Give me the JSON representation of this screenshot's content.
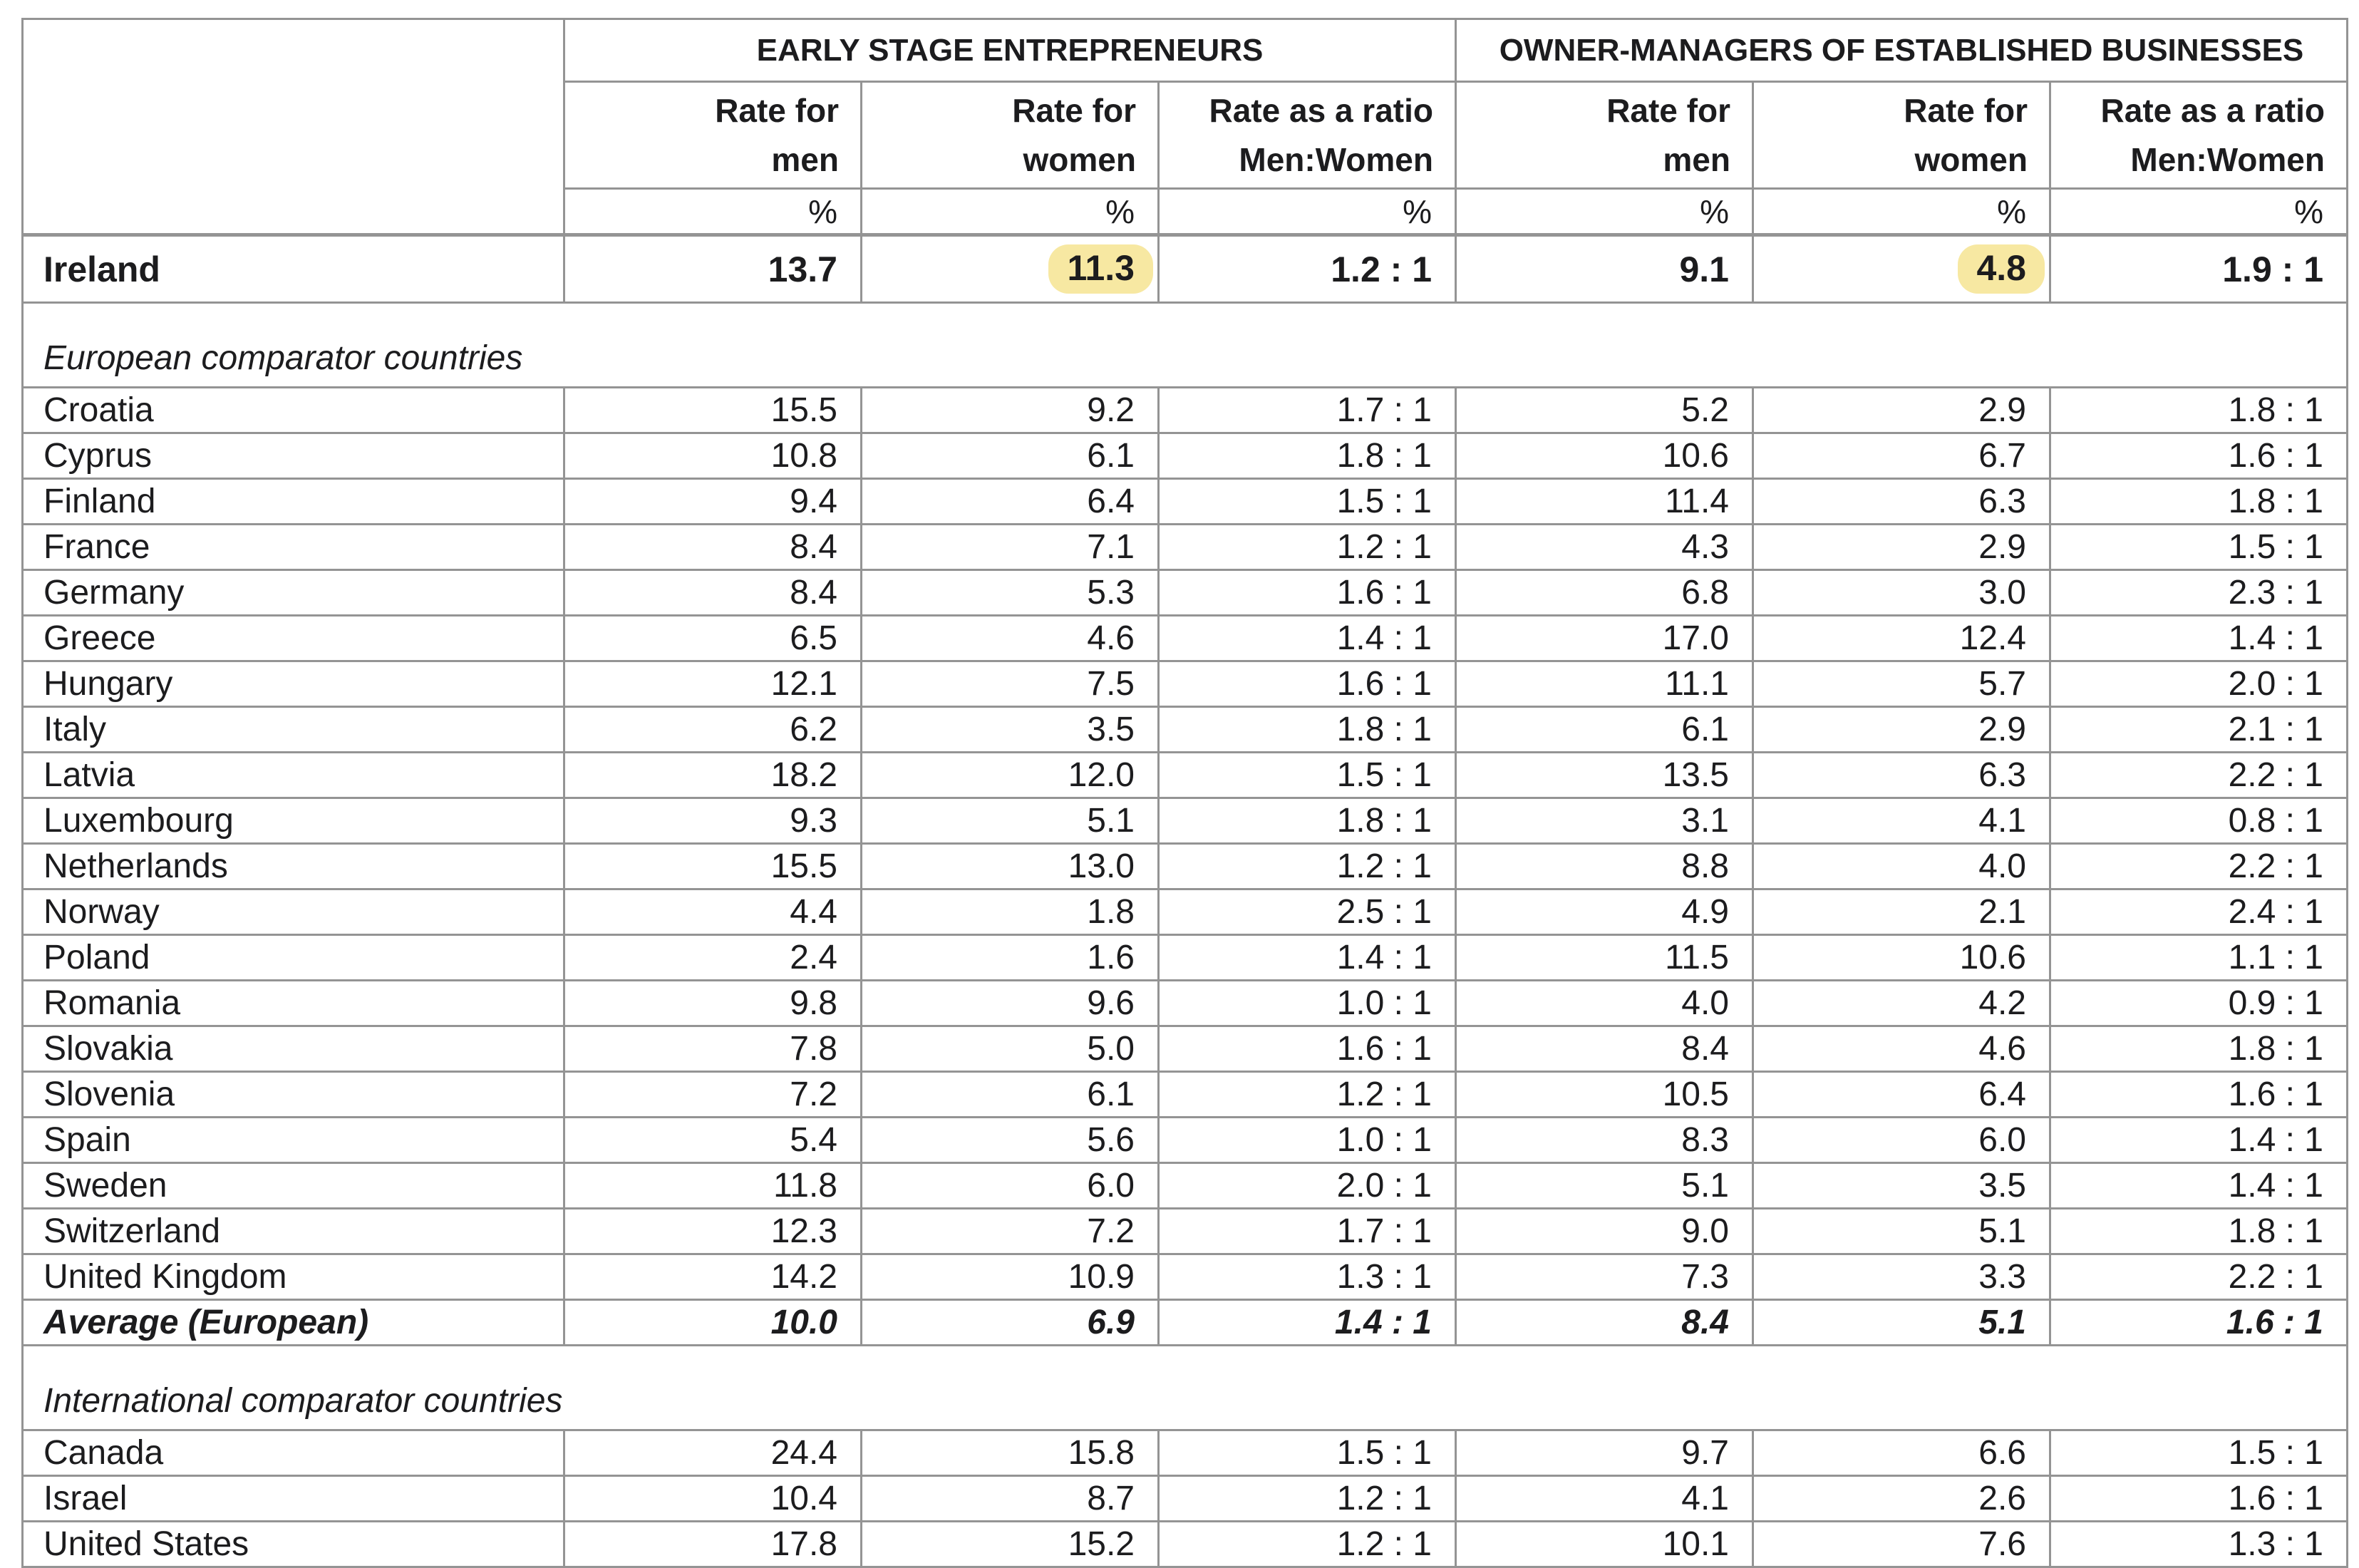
{
  "table": {
    "group_headers": [
      {
        "label": "EARLY STAGE ENTREPRENEURS"
      },
      {
        "label": "OWNER-MANAGERS OF ESTABLISHED BUSINESSES"
      }
    ],
    "col_headers": [
      {
        "line1": "Rate for",
        "line2": "men"
      },
      {
        "line1": "Rate for",
        "line2": "women"
      },
      {
        "line1": "Rate as a ratio",
        "line2": "Men:Women"
      },
      {
        "line1": "Rate for",
        "line2": "men"
      },
      {
        "line1": "Rate for",
        "line2": "women"
      },
      {
        "line1": "Rate as a ratio",
        "line2": "Men:Women"
      }
    ],
    "unit_row": [
      "%",
      "%",
      "%",
      "%",
      "%",
      "%"
    ],
    "ireland": {
      "name": "Ireland",
      "values": [
        "13.7",
        "11.3",
        "1.2 : 1",
        "9.1",
        "4.8",
        "1.9 : 1"
      ],
      "highlighted_value_indexes": [
        1,
        4
      ]
    },
    "sections": [
      {
        "title": "European comparator countries",
        "rows": [
          {
            "name": "Croatia",
            "values": [
              "15.5",
              "9.2",
              "1.7 : 1",
              "5.2",
              "2.9",
              "1.8 : 1"
            ]
          },
          {
            "name": "Cyprus",
            "values": [
              "10.8",
              "6.1",
              "1.8 : 1",
              "10.6",
              "6.7",
              "1.6 : 1"
            ]
          },
          {
            "name": "Finland",
            "values": [
              "9.4",
              "6.4",
              "1.5 : 1",
              "11.4",
              "6.3",
              "1.8 : 1"
            ]
          },
          {
            "name": "France",
            "values": [
              "8.4",
              "7.1",
              "1.2 : 1",
              "4.3",
              "2.9",
              "1.5 : 1"
            ]
          },
          {
            "name": "Germany",
            "values": [
              "8.4",
              "5.3",
              "1.6 : 1",
              "6.8",
              "3.0",
              "2.3 : 1"
            ]
          },
          {
            "name": "Greece",
            "values": [
              "6.5",
              "4.6",
              "1.4 : 1",
              "17.0",
              "12.4",
              "1.4 : 1"
            ]
          },
          {
            "name": "Hungary",
            "values": [
              "12.1",
              "7.5",
              "1.6 : 1",
              "11.1",
              "5.7",
              "2.0 : 1"
            ]
          },
          {
            "name": "Italy",
            "values": [
              "6.2",
              "3.5",
              "1.8 : 1",
              "6.1",
              "2.9",
              "2.1 : 1"
            ]
          },
          {
            "name": "Latvia",
            "values": [
              "18.2",
              "12.0",
              "1.5 : 1",
              "13.5",
              "6.3",
              "2.2 : 1"
            ]
          },
          {
            "name": "Luxembourg",
            "values": [
              "9.3",
              "5.1",
              "1.8 : 1",
              "3.1",
              "4.1",
              "0.8 : 1"
            ]
          },
          {
            "name": "Netherlands",
            "values": [
              "15.5",
              "13.0",
              "1.2 : 1",
              "8.8",
              "4.0",
              "2.2 : 1"
            ]
          },
          {
            "name": "Norway",
            "values": [
              "4.4",
              "1.8",
              "2.5 : 1",
              "4.9",
              "2.1",
              "2.4 : 1"
            ]
          },
          {
            "name": "Poland",
            "values": [
              "2.4",
              "1.6",
              "1.4 : 1",
              "11.5",
              "10.6",
              "1.1 : 1"
            ]
          },
          {
            "name": "Romania",
            "values": [
              "9.8",
              "9.6",
              "1.0 : 1",
              "4.0",
              "4.2",
              "0.9 : 1"
            ]
          },
          {
            "name": "Slovakia",
            "values": [
              "7.8",
              "5.0",
              "1.6 : 1",
              "8.4",
              "4.6",
              "1.8 : 1"
            ]
          },
          {
            "name": "Slovenia",
            "values": [
              "7.2",
              "6.1",
              "1.2 : 1",
              "10.5",
              "6.4",
              "1.6 : 1"
            ]
          },
          {
            "name": "Spain",
            "values": [
              "5.4",
              "5.6",
              "1.0 : 1",
              "8.3",
              "6.0",
              "1.4 : 1"
            ]
          },
          {
            "name": "Sweden",
            "values": [
              "11.8",
              "6.0",
              "2.0 : 1",
              "5.1",
              "3.5",
              "1.4 : 1"
            ]
          },
          {
            "name": "Switzerland",
            "values": [
              "12.3",
              "7.2",
              "1.7 : 1",
              "9.0",
              "5.1",
              "1.8 : 1"
            ]
          },
          {
            "name": "United Kingdom",
            "values": [
              "14.2",
              "10.9",
              "1.3 : 1",
              "7.3",
              "3.3",
              "2.2 : 1"
            ]
          },
          {
            "name": "Average (European)",
            "values": [
              "10.0",
              "6.9",
              "1.4 : 1",
              "8.4",
              "5.1",
              "1.6 : 1"
            ],
            "emphasis": true
          }
        ]
      },
      {
        "title": "International comparator countries",
        "rows": [
          {
            "name": "Canada",
            "values": [
              "24.4",
              "15.8",
              "1.5 : 1",
              "9.7",
              "6.6",
              "1.5 : 1"
            ]
          },
          {
            "name": "Israel",
            "values": [
              "10.4",
              "8.7",
              "1.2 : 1",
              "4.1",
              "2.6",
              "1.6 : 1"
            ]
          },
          {
            "name": "United States",
            "values": [
              "17.8",
              "15.2",
              "1.2 : 1",
              "10.1",
              "7.6",
              "1.3 : 1"
            ]
          }
        ]
      }
    ]
  },
  "colors": {
    "highlight": "#f7e8a2",
    "border": "#949494",
    "text": "#1c1c1e",
    "background": "#ffffff"
  }
}
